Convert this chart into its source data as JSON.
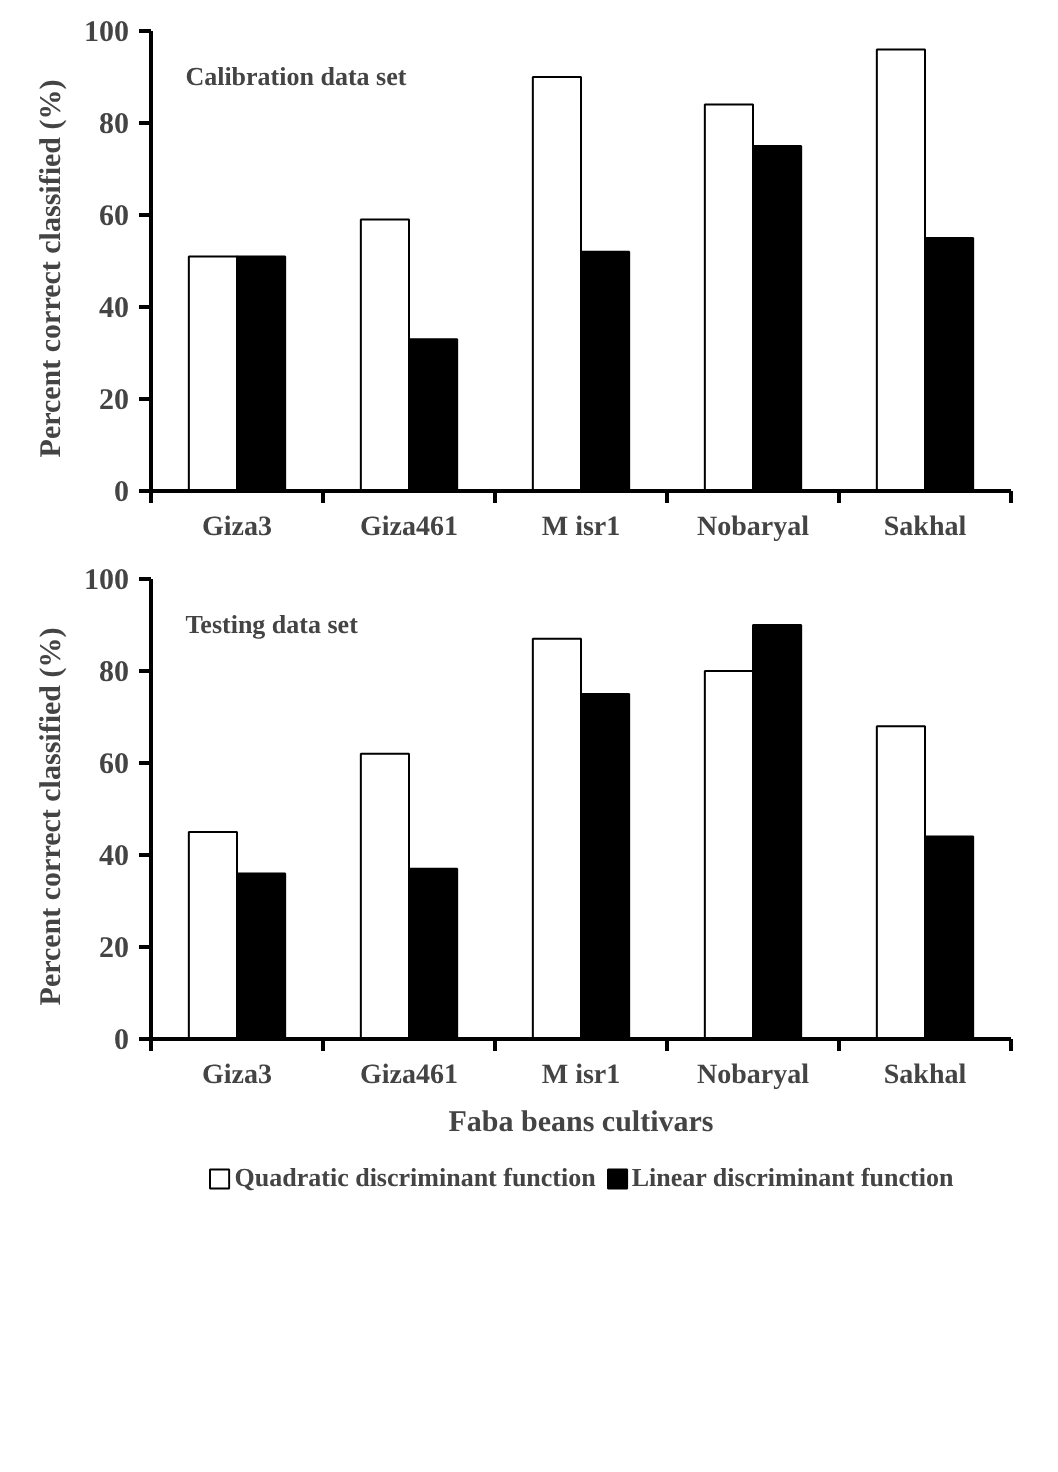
{
  "chart_data": [
    {
      "type": "bar",
      "title": "Calibration data set",
      "ylabel": "Percent correct classified   (%)",
      "categories": [
        "Giza3",
        "Giza461",
        "M isr1",
        "Nobaryal",
        "Sakhal"
      ],
      "series": [
        {
          "color": "#ffffff",
          "values": [
            51,
            59,
            90,
            84,
            96
          ]
        },
        {
          "color": "#000000",
          "values": [
            51,
            33,
            52,
            75,
            55
          ]
        }
      ],
      "ylim": [
        0,
        100
      ],
      "yticks": [
        0,
        20,
        40,
        60,
        80,
        100
      ],
      "grid": false
    },
    {
      "type": "bar",
      "title": "Testing data set",
      "ylabel": "Percent correct classified   (%)",
      "xlabel": "Faba beans cultivars",
      "categories": [
        "Giza3",
        "Giza461",
        "M isr1",
        "Nobaryal",
        "Sakhal"
      ],
      "series": [
        {
          "name": "Quadratic discriminant function",
          "color": "#ffffff",
          "values": [
            45,
            62,
            87,
            80,
            68
          ]
        },
        {
          "name": "Linear discriminant function",
          "color": "#000000",
          "values": [
            36,
            37,
            75,
            90,
            44
          ]
        }
      ],
      "ylim": [
        0,
        100
      ],
      "yticks": [
        0,
        20,
        40,
        60,
        80,
        100
      ],
      "grid": false,
      "legend": "bottom"
    }
  ]
}
